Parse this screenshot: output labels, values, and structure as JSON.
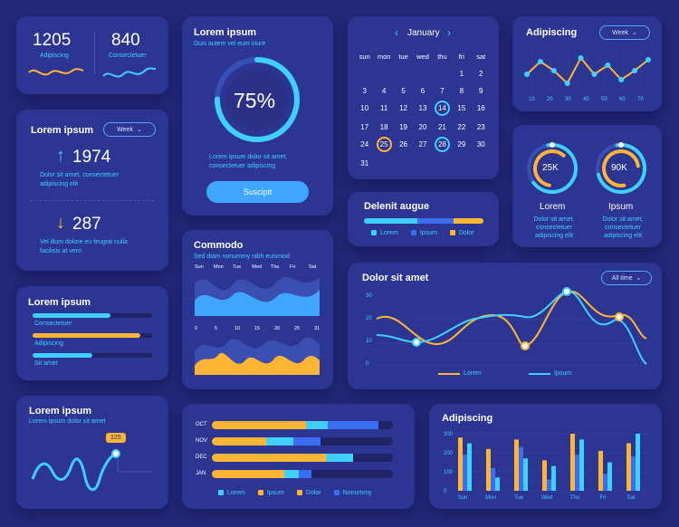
{
  "colors": {
    "bg": "#23297a",
    "card": "#2d3592",
    "cyan": "#3fd0ff",
    "orange": "#ffb534",
    "blue": "#3a6cf4",
    "track": "#1f2466"
  },
  "stats": {
    "left_value": "1205",
    "left_label": "Adipiscing",
    "right_value": "840",
    "right_label": "Consectetuer"
  },
  "trend": {
    "title": "Lorem ipsum",
    "filter": "Week",
    "up_value": "1974",
    "up_text": "Dolor sit amet, consectetuer adipiscing elit",
    "down_value": "287",
    "down_text": "Vel illum dolore eu feugiat nulla facilisis at vero",
    "up_icon": "arrow-up-icon",
    "down_icon": "arrow-down-icon"
  },
  "progress_card": {
    "title": "Lorem ipsum",
    "subtitle": "Duis autem vel eum iriure",
    "percent_label": "75%",
    "percent": 0.75,
    "text": "Lorem ipsum dolor sit amet, consectetuer adipiscing",
    "button": "Suscipit"
  },
  "calendar": {
    "month": "January",
    "prev_icon": "chevron-left-icon",
    "next_icon": "chevron-right-icon",
    "weekdays": [
      "sun",
      "mon",
      "tue",
      "wed",
      "thu",
      "fri",
      "sat"
    ],
    "weeks": [
      [
        "",
        "",
        "",
        "",
        "",
        "1",
        "2"
      ],
      [
        "3",
        "4",
        "5",
        "6",
        "7",
        "8",
        "9"
      ],
      [
        "10",
        "11",
        "12",
        "13",
        "14",
        "15",
        "16"
      ],
      [
        "17",
        "18",
        "19",
        "20",
        "21",
        "22",
        "23"
      ],
      [
        "24",
        "25",
        "26",
        "27",
        "28",
        "29",
        "30"
      ],
      [
        "31",
        "",
        "",
        "",
        "",
        "",
        ""
      ]
    ],
    "highlight_cyan": [
      "14",
      "28"
    ],
    "highlight_orange": [
      "25"
    ]
  },
  "line_small": {
    "title": "Adipiscing",
    "filter": "Week",
    "x_labels": [
      "10",
      "20",
      "30",
      "40",
      "50",
      "60",
      "70"
    ],
    "values": [
      0.45,
      0.8,
      0.55,
      0.2,
      0.9,
      0.45,
      0.7,
      0.3,
      0.55,
      0.85
    ]
  },
  "gauges": {
    "left_value": "25K",
    "left_title": "Lorem",
    "left_text": "Dolor sit amet, consectetuer adipiscing elit",
    "right_value": "90K",
    "right_title": "Ipsum",
    "right_text": "Dolor sit amet, consectetuer adipiscing elit"
  },
  "stacked_bar": {
    "title": "Delenit augue",
    "legend": [
      "Lorem",
      "Ipsum",
      "Dolor"
    ],
    "segments": [
      0.45,
      0.3,
      0.25
    ]
  },
  "area_card": {
    "title": "Commodo",
    "subtitle": "Sed diam nonummy nibh euismod",
    "top_labels": [
      "Sun",
      "Mon",
      "Tue",
      "Wed",
      "Thu",
      "Fri",
      "Sat"
    ],
    "bottom_labels": [
      "0",
      "5",
      "10",
      "15",
      "20",
      "25",
      "31"
    ]
  },
  "progress_list": {
    "title": "Lorem ipsum",
    "items": [
      {
        "label": "Consectetuer",
        "value": 0.65,
        "color": "#3fd0ff"
      },
      {
        "label": "Adipiscing",
        "value": 0.9,
        "color": "#ffb534"
      },
      {
        "label": "Sit amet",
        "value": 0.5,
        "color": "#3fd0ff"
      }
    ]
  },
  "line_big": {
    "title": "Dolor sit amet",
    "filter": "All time",
    "y_labels": [
      "30",
      "20",
      "10",
      "0"
    ],
    "legend": [
      "Lorem",
      "Ipsum"
    ]
  },
  "spark": {
    "title": "Lorem ipsum",
    "subtitle": "Lorem ipsum dolor sit amet",
    "badge": "125"
  },
  "hbar": {
    "rows": [
      {
        "label": "OCT",
        "values": [
          0.2,
          0.32,
          0.12,
          0.28
        ]
      },
      {
        "label": "NOV",
        "values": [
          0.12,
          0.18,
          0.15,
          0.15
        ]
      },
      {
        "label": "DEC",
        "values": [
          0.25,
          0.38,
          0.15,
          0.0
        ]
      },
      {
        "label": "JAN",
        "values": [
          0.12,
          0.28,
          0.08,
          0.07
        ]
      }
    ],
    "legend": [
      "Lorem",
      "Ipsum",
      "Dolor",
      "Nonummy"
    ]
  },
  "chart_data": {
    "type": "bar",
    "title": "Adipiscing",
    "categories": [
      "Sun",
      "Mon",
      "Tue",
      "Wed",
      "Thu",
      "Fri",
      "Sat"
    ],
    "ylim": [
      0,
      300
    ],
    "y_ticks": [
      "300",
      "200",
      "100",
      "0"
    ],
    "series": [
      {
        "values": [
          280,
          220,
          270,
          160,
          300,
          210,
          250
        ]
      },
      {
        "values": [
          190,
          120,
          230,
          60,
          190,
          90,
          180
        ]
      },
      {
        "values": [
          250,
          70,
          170,
          130,
          270,
          150,
          300
        ]
      }
    ]
  }
}
